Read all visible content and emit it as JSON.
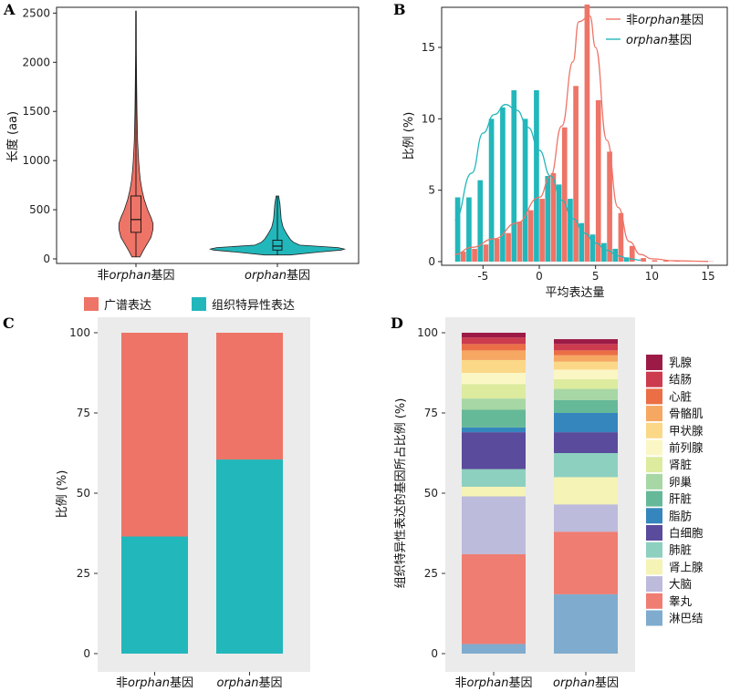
{
  "chart_data": [
    {
      "panel": "A",
      "type": "violin",
      "ylabel": "长度 (aa)",
      "categories": [
        "非orphan基因",
        "orphan基因"
      ],
      "ylim": [
        0,
        2550
      ],
      "yticks": [
        0,
        500,
        1000,
        1500,
        2000,
        2500
      ],
      "colors": [
        "#ee7467",
        "#22b7bb"
      ],
      "series": [
        {
          "name": "非orphan基因",
          "min": 20,
          "q1": 270,
          "median": 400,
          "q3": 640,
          "max": 2520,
          "profile": [
            [
              20,
              0.2
            ],
            [
              80,
              0.35
            ],
            [
              150,
              0.55
            ],
            [
              220,
              0.75
            ],
            [
              300,
              0.85
            ],
            [
              360,
              0.85
            ],
            [
              420,
              0.75
            ],
            [
              500,
              0.58
            ],
            [
              600,
              0.42
            ],
            [
              700,
              0.3
            ],
            [
              800,
              0.22
            ],
            [
              900,
              0.17
            ],
            [
              1000,
              0.13
            ],
            [
              1200,
              0.08
            ],
            [
              1500,
              0.05
            ],
            [
              1800,
              0.03
            ],
            [
              2100,
              0.02
            ],
            [
              2520,
              0.012
            ]
          ]
        },
        {
          "name": "orphan基因",
          "min": 40,
          "q1": 90,
          "median": 130,
          "q3": 190,
          "max": 640,
          "profile": [
            [
              40,
              0.2
            ],
            [
              70,
              0.65
            ],
            [
              90,
              1.0
            ],
            [
              100,
              1.05
            ],
            [
              115,
              0.95
            ],
            [
              140,
              0.35
            ],
            [
              170,
              0.25
            ],
            [
              200,
              0.2
            ],
            [
              260,
              0.14
            ],
            [
              320,
              0.09
            ],
            [
              400,
              0.06
            ],
            [
              480,
              0.05
            ],
            [
              560,
              0.04
            ],
            [
              640,
              0.02
            ]
          ]
        }
      ]
    },
    {
      "panel": "B",
      "type": "bar",
      "xlabel": "平均表达量",
      "ylabel": "比例 (%)",
      "xlim": [
        -8,
        16
      ],
      "ylim": [
        0,
        18
      ],
      "xticks": [
        -5,
        0,
        5,
        10,
        15
      ],
      "yticks": [
        0,
        5,
        10,
        15
      ],
      "legend_position": "top-right",
      "series": [
        {
          "name": "非orphan基因",
          "color": "#ee7467",
          "x": [
            -7,
            -6,
            -5,
            -4,
            -3,
            -2,
            -1,
            0,
            1,
            2,
            3,
            4,
            5,
            6,
            7,
            8,
            9,
            10,
            11,
            12,
            13,
            14,
            15
          ],
          "values": [
            0.7,
            0.9,
            1.2,
            1.6,
            2.0,
            2.8,
            3.6,
            4.4,
            6.2,
            9.4,
            12.3,
            18.0,
            11.3,
            7.7,
            3.4,
            1.1,
            0.25,
            0.1,
            0.07,
            0.05,
            0.04,
            0.03,
            0.02
          ],
          "curve": [
            [
              -7.5,
              0.5
            ],
            [
              -6,
              1.0
            ],
            [
              -4,
              1.6
            ],
            [
              -2,
              2.7
            ],
            [
              0,
              4.5
            ],
            [
              1,
              6.0
            ],
            [
              2,
              9.5
            ],
            [
              3,
              14.0
            ],
            [
              3.5,
              16.8
            ],
            [
              4.5,
              17.2
            ],
            [
              5,
              15.0
            ],
            [
              6,
              8.5
            ],
            [
              7,
              3.8
            ],
            [
              8,
              1.4
            ],
            [
              9,
              0.5
            ],
            [
              10,
              0.2
            ],
            [
              12,
              0.06
            ],
            [
              15,
              0.02
            ]
          ]
        },
        {
          "name": "orphan基因",
          "color": "#22b7bb",
          "x": [
            -7,
            -6,
            -5,
            -4,
            -3,
            -2,
            -1,
            0,
            1,
            2,
            3,
            4,
            5,
            6,
            7,
            8
          ],
          "values": [
            4.5,
            4.5,
            5.7,
            10.0,
            10.8,
            12.0,
            10.0,
            12.0,
            6.0,
            5.4,
            4.4,
            2.7,
            1.9,
            1.3,
            0.9,
            0.3
          ],
          "curve": [
            [
              -7.5,
              2.9
            ],
            [
              -6,
              6.2
            ],
            [
              -5,
              9.0
            ],
            [
              -4,
              10.3
            ],
            [
              -3,
              11.0
            ],
            [
              -2,
              10.6
            ],
            [
              -1,
              9.4
            ],
            [
              0,
              7.8
            ],
            [
              1,
              6.0
            ],
            [
              2,
              4.3
            ],
            [
              3,
              3.0
            ],
            [
              4,
              2.0
            ],
            [
              5,
              1.3
            ],
            [
              6,
              0.8
            ],
            [
              7,
              0.4
            ],
            [
              8,
              0.2
            ],
            [
              9,
              0.1
            ]
          ]
        }
      ]
    },
    {
      "panel": "C",
      "type": "stacked_bar",
      "ylabel": "比例 (%)",
      "categories": [
        "非orphan基因",
        "orphan基因"
      ],
      "ylim": [
        0,
        100
      ],
      "yticks": [
        0,
        25,
        50,
        75,
        100
      ],
      "legend_position": "top",
      "series": [
        {
          "name": "组织特异性表达",
          "color": "#22b7bb",
          "values": [
            36.5,
            60.5
          ]
        },
        {
          "name": "广谱表达",
          "color": "#ee7467",
          "values": [
            63.5,
            39.5
          ]
        }
      ]
    },
    {
      "panel": "D",
      "type": "stacked_bar",
      "ylabel": "组织特异性表达的基因所占比例 (%)",
      "categories": [
        "非orphan基因",
        "orphan基因"
      ],
      "ylim": [
        0,
        100
      ],
      "yticks": [
        0,
        25,
        50,
        75,
        100
      ],
      "legend_position": "right",
      "series": [
        {
          "name": "淋巴结",
          "color": "#7facce",
          "values": [
            3.0,
            18.5
          ]
        },
        {
          "name": "睾丸",
          "color": "#ef7d72",
          "values": [
            28.0,
            19.5
          ]
        },
        {
          "name": "大脑",
          "color": "#bcbbdb",
          "values": [
            18.0,
            8.5
          ]
        },
        {
          "name": "肾上腺",
          "color": "#f5f3b5",
          "values": [
            3.0,
            8.5
          ]
        },
        {
          "name": "肺脏",
          "color": "#8dd0c0",
          "values": [
            5.5,
            7.5
          ]
        },
        {
          "name": "白细胞",
          "color": "#5a4b9c",
          "values": [
            11.5,
            6.5
          ]
        },
        {
          "name": "脂肪",
          "color": "#3586bd",
          "values": [
            1.5,
            6.0
          ]
        },
        {
          "name": "肝脏",
          "color": "#65b998",
          "values": [
            5.5,
            4.0
          ]
        },
        {
          "name": "卵巢",
          "color": "#a7d7a5",
          "values": [
            3.5,
            3.5
          ]
        },
        {
          "name": "肾脏",
          "color": "#dceb9e",
          "values": [
            4.5,
            3.0
          ]
        },
        {
          "name": "前列腺",
          "color": "#fbf7c5",
          "values": [
            3.5,
            3.0
          ]
        },
        {
          "name": "甲状腺",
          "color": "#fbd888",
          "values": [
            4.0,
            2.5
          ]
        },
        {
          "name": "骨骼肌",
          "color": "#f6a762",
          "values": [
            3.0,
            2.0
          ]
        },
        {
          "name": "心脏",
          "color": "#eb6e45",
          "values": [
            2.0,
            1.5
          ]
        },
        {
          "name": "结肠",
          "color": "#cc3b4e",
          "values": [
            2.0,
            2.0
          ]
        },
        {
          "name": "乳腺",
          "color": "#9c1b46",
          "values": [
            1.5,
            1.5
          ]
        }
      ]
    }
  ]
}
